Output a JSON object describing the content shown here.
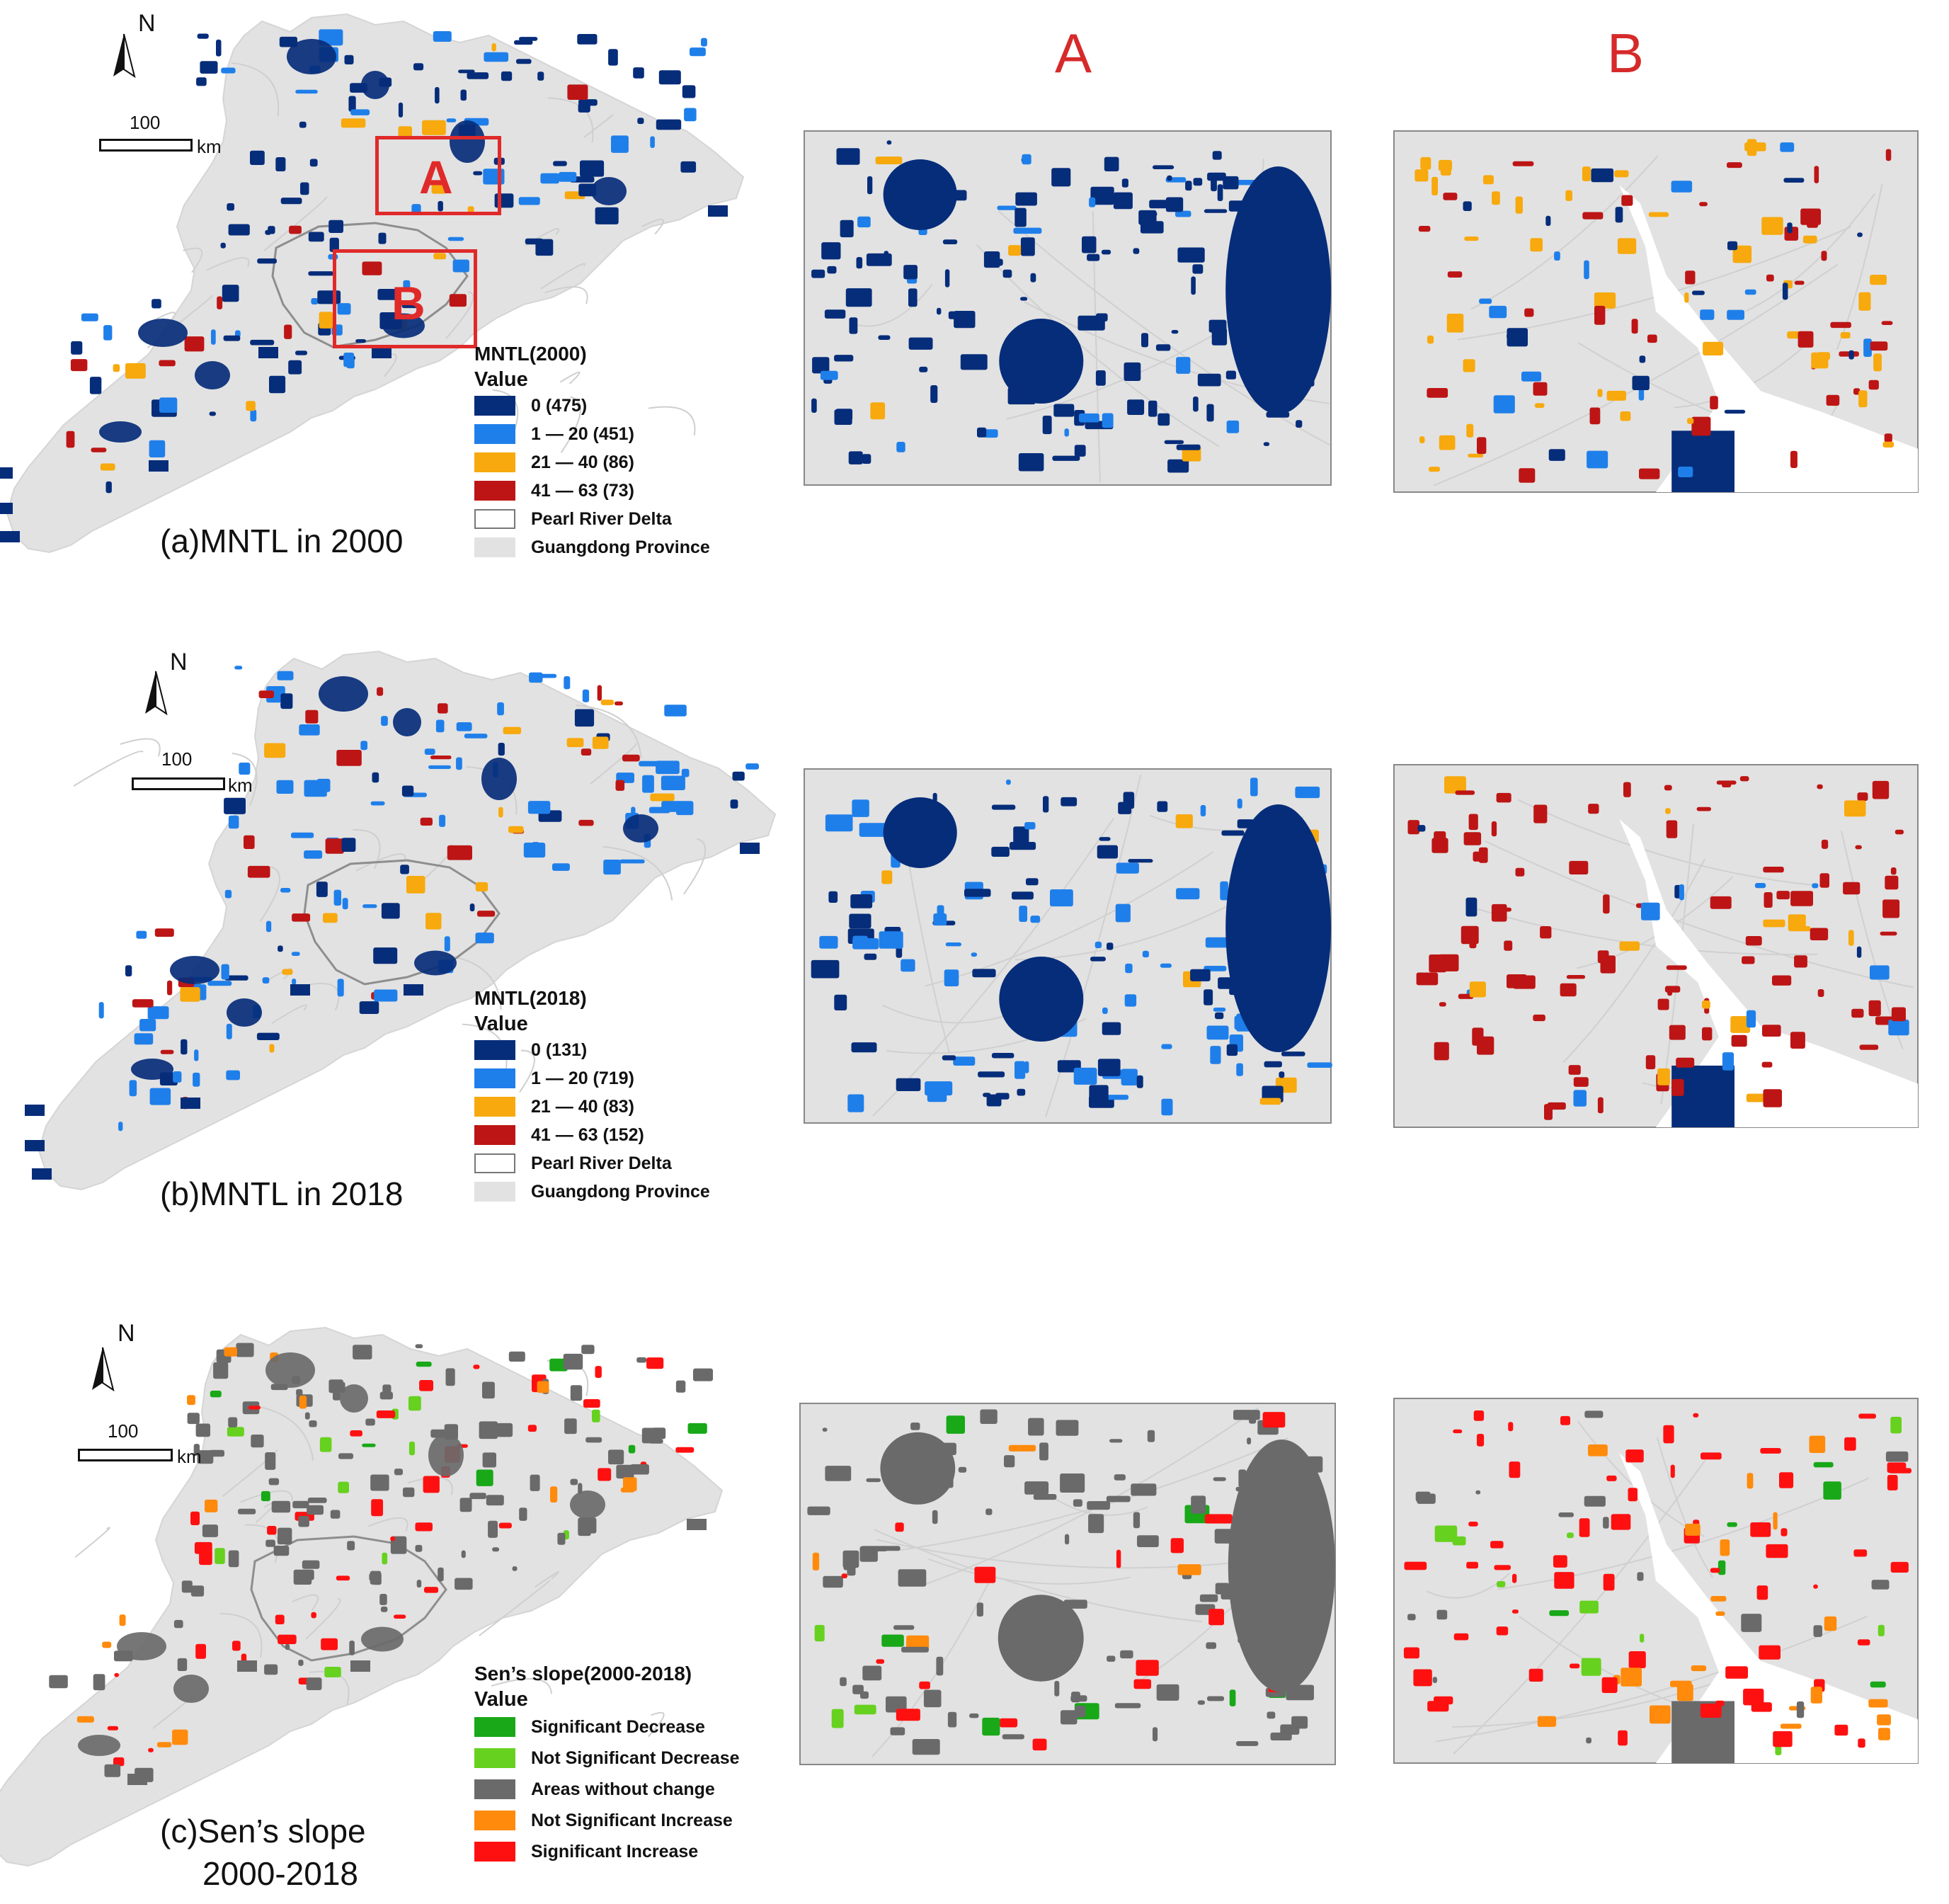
{
  "columns": {
    "a": "A",
    "b": "B"
  },
  "colors": {
    "land": "#e2e2e2",
    "boundary": "#c9c9c9",
    "pearl_boundary": "#8e8e8e",
    "zero": "#062d7a",
    "low": "#1f7fea",
    "mid": "#f7a90d",
    "high": "#bd1515",
    "sig_decrease": "#18a818",
    "ns_decrease": "#66d11e",
    "no_change": "#6a6a6a",
    "ns_increase": "#ff8a0b",
    "sig_increase": "#ff1010",
    "overlay_red": "#e02a2a"
  },
  "panels": [
    {
      "id": "a",
      "caption": "(a)MNTL in 2000",
      "north": "N",
      "scale_value": "100",
      "scale_unit": "km",
      "overlays": [
        "A",
        "B"
      ],
      "legend": {
        "title": "MNTL(2000)",
        "value_label": "Value",
        "items": [
          {
            "label": "0 (475)",
            "color": "zero"
          },
          {
            "label": "1 — 20 (451)",
            "color": "low"
          },
          {
            "label": "21 — 40 (86)",
            "color": "mid"
          },
          {
            "label": "41 — 63 (73)",
            "color": "high"
          },
          {
            "label": "Pearl River Delta",
            "color": "outline"
          },
          {
            "label": "Guangdong Province",
            "color": "land"
          }
        ]
      }
    },
    {
      "id": "b",
      "caption": "(b)MNTL in 2018",
      "north": "N",
      "scale_value": "100",
      "scale_unit": "km",
      "legend": {
        "title": "MNTL(2018)",
        "value_label": "Value",
        "items": [
          {
            "label": "0 (131)",
            "color": "zero"
          },
          {
            "label": "1 — 20 (719)",
            "color": "low"
          },
          {
            "label": "21 — 40 (83)",
            "color": "mid"
          },
          {
            "label": "41 — 63 (152)",
            "color": "high"
          },
          {
            "label": "Pearl River Delta",
            "color": "outline"
          },
          {
            "label": "Guangdong Province",
            "color": "land"
          }
        ]
      }
    },
    {
      "id": "c",
      "caption_line1": "(c)Sen’s slope",
      "caption_line2": "2000-2018",
      "north": "N",
      "scale_value": "100",
      "scale_unit": "km",
      "legend": {
        "title": "Sen’s slope(2000-2018)",
        "value_label": "Value",
        "items": [
          {
            "label": "Significant Decrease",
            "color": "sig_decrease"
          },
          {
            "label": "Not Significant Decrease",
            "color": "ns_decrease"
          },
          {
            "label": "Areas without change",
            "color": "no_change"
          },
          {
            "label": "Not Significant Increase",
            "color": "ns_increase"
          },
          {
            "label": "Significant Increase",
            "color": "sig_increase"
          }
        ]
      }
    }
  ]
}
